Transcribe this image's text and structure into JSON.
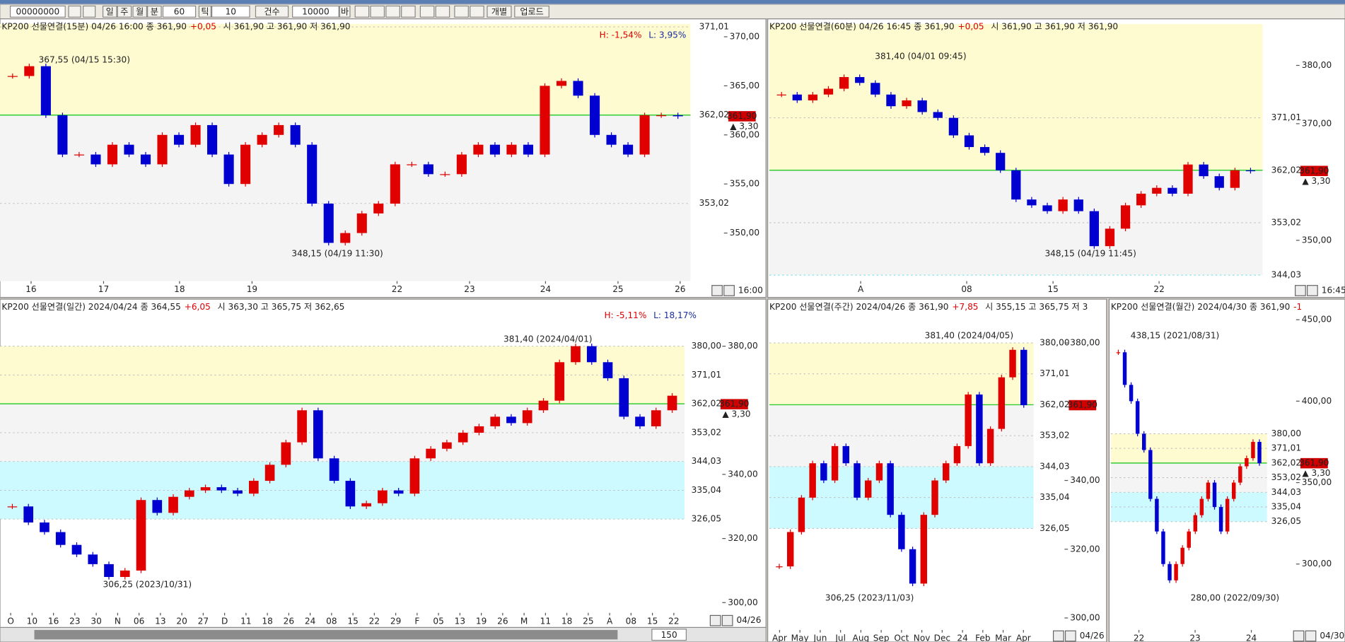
{
  "toolbar": {
    "account": "00000000",
    "periods": [
      "일",
      "주",
      "월",
      "분"
    ],
    "minute": "60",
    "tick_label": "틱",
    "tick": "10",
    "count_label": "건수",
    "count": "10000",
    "bar_label": "바",
    "buttons": [
      "개별",
      "업로드"
    ],
    "zoom": "150"
  },
  "panels": [
    {
      "title": "KP200 선물연결(15분) 04/26 16:00  종 361,90",
      "change": "+0,05",
      "ohlc": "시 361,90 고 361,90 저 361,90",
      "hl": [
        "H: -1,54%",
        "L: 3,95%"
      ],
      "ylim": [
        345.1,
        371.3
      ],
      "yticks": [
        {
          "value": 370,
          "label": "370,00"
        },
        {
          "value": 365,
          "label": "365,00"
        },
        {
          "value": 360,
          "label": "360,00"
        },
        {
          "value": 355,
          "label": "355,00"
        },
        {
          "value": 350,
          "label": "350,00"
        }
      ],
      "levels": [
        {
          "value": 371.01,
          "label": "371,01"
        },
        {
          "value": 362.02,
          "label": "362,02"
        },
        {
          "value": 353.02,
          "label": "353,02"
        }
      ],
      "fills": [
        "#fffbd0",
        "#fffbd0",
        "#f4f4f4",
        "#f4f4f4"
      ],
      "level_colors": [
        "#bbbbbb",
        "#33cc33",
        "#bbbbbb"
      ],
      "x_labels": [
        "16",
        "17",
        "18",
        "19",
        "22",
        "23",
        "24",
        "25",
        "26"
      ],
      "annotations": [
        {
          "text": "367,55 (04/15 15:30)",
          "color": "#c00000"
        },
        {
          "text": "348,15 (04/19 11:30)",
          "color": "#1a2ea0"
        }
      ],
      "last": {
        "value": 361.9,
        "label": "361,90"
      },
      "last_change": "▲ 3,30",
      "corner": "16:00",
      "closes": [
        366,
        367,
        362,
        358,
        358,
        357,
        359,
        358,
        357,
        360,
        359,
        361,
        358,
        355,
        359,
        360,
        361,
        359,
        353,
        349,
        350,
        352,
        353,
        357,
        357,
        356,
        356,
        358,
        359,
        358,
        359,
        358,
        365,
        365.5,
        364,
        360,
        359,
        358,
        362,
        362,
        361.9
      ]
    },
    {
      "title": "KP200 선물연결(60분) 04/26 16:45  종 361,90",
      "change": "+0,05",
      "ohlc": "시 361,90 고 361,90 저 361,90",
      "ylim": [
        343,
        387.1
      ],
      "yticks": [
        {
          "value": 380,
          "label": "380,00"
        },
        {
          "value": 370,
          "label": "370,00"
        },
        {
          "value": 350,
          "label": "350,00"
        }
      ],
      "levels": [
        {
          "value": 371.01,
          "label": "371,01"
        },
        {
          "value": 362.02,
          "label": "362,02"
        },
        {
          "value": 353.02,
          "label": "353,02"
        },
        {
          "value": 344.03,
          "label": "344,03"
        }
      ],
      "fills": [
        "#fffbd0",
        "#fffbd0",
        "#f4f4f4",
        "#f4f4f4",
        null
      ],
      "level_colors": [
        "#bbbbbb",
        "#33cc33",
        "#bbbbbb",
        "#66dddd"
      ],
      "x_labels": [
        "A",
        "08",
        "15",
        "22"
      ],
      "annotations": [
        {
          "text": "381,40 (04/01 09:45)",
          "color": "#c00000"
        },
        {
          "text": "348,15 (04/19 11:45)",
          "color": "#1a2ea0"
        }
      ],
      "last": {
        "value": 361.9,
        "label": "361,90"
      },
      "last_change": "▲ 3,30",
      "corner": "16:45",
      "closes": [
        375,
        374,
        375,
        376,
        378,
        377,
        375,
        373,
        374,
        372,
        371,
        368,
        366,
        365,
        362,
        357,
        356,
        355,
        357,
        355,
        349,
        352,
        356,
        358,
        359,
        358,
        363,
        361,
        359,
        362,
        361.9
      ]
    },
    {
      "title": "KP200 선물연결(일간) 2024/04/24  종 364,55",
      "change": "+6,05",
      "ohlc": "시 363,30 고 365,75 저 362,65",
      "hl": [
        "H: -5,11%",
        "L: 18,17%"
      ],
      "ylim": [
        296.8,
        391.2
      ],
      "yticks": [
        {
          "value": 380,
          "label": "380,00"
        },
        {
          "value": 340,
          "label": "340,00"
        },
        {
          "value": 320,
          "label": "320,00"
        },
        {
          "value": 300,
          "label": "300,00"
        }
      ],
      "levels": [
        {
          "value": 380,
          "label": "380,00"
        },
        {
          "value": 371.01,
          "label": "371,01"
        },
        {
          "value": 362.02,
          "label": "362,02"
        },
        {
          "value": 353.02,
          "label": "353,02"
        },
        {
          "value": 344.03,
          "label": "344,03"
        },
        {
          "value": 335.04,
          "label": "335,04"
        },
        {
          "value": 326.05,
          "label": "326,05"
        }
      ],
      "fills": [
        null,
        "#fffbd0",
        "#fffbd0",
        "#f4f4f4",
        "#f4f4f4",
        "#ccfaff",
        "#ccfaff",
        null
      ],
      "level_colors": [
        "#bbbbbb",
        "#bbbbbb",
        "#33cc33",
        "#bbbbbb",
        "#bbbbbb",
        "#bbbbbb",
        "#bbbbbb"
      ],
      "x_labels": [
        "O",
        "10",
        "16",
        "23",
        "30",
        "N",
        "06",
        "13",
        "20",
        "27",
        "D",
        "11",
        "18",
        "26",
        "24",
        "08",
        "15",
        "22",
        "29",
        "F",
        "05",
        "13",
        "19",
        "26",
        "M",
        "11",
        "18",
        "25",
        "A",
        "08",
        "15",
        "22"
      ],
      "annotations": [
        {
          "text": "381,40 (2024/04/01)",
          "color": "#c00000"
        },
        {
          "text": "306,25 (2023/10/31)",
          "color": "#1a2ea0"
        }
      ],
      "last": {
        "value": 361.9,
        "label": "361,90"
      },
      "last_change": "▲ 3,30",
      "corner": "04/26",
      "closes": [
        330,
        325,
        322,
        318,
        315,
        312,
        308,
        310,
        332,
        328,
        333,
        335,
        336,
        335,
        334,
        338,
        343,
        350,
        360,
        345,
        338,
        330,
        331,
        335,
        334,
        345,
        348,
        350,
        353,
        355,
        358,
        356,
        360,
        363,
        375,
        380,
        375,
        370,
        358,
        355,
        360,
        364.55
      ]
    },
    {
      "title": "KP200 선물연결(주간) 2024/04/26  종 361,90",
      "change": "+7,85",
      "ohlc": "시 355,15 고 365,75 저 3",
      "ylim": [
        296.5,
        389.5
      ],
      "yticks": [
        {
          "value": 380,
          "label": "380,00"
        },
        {
          "value": 340,
          "label": "340,00"
        },
        {
          "value": 320,
          "label": "320,00"
        },
        {
          "value": 300,
          "label": "300,00"
        }
      ],
      "levels": [
        {
          "value": 380,
          "label": "380,00"
        },
        {
          "value": 371.01,
          "label": "371,01"
        },
        {
          "value": 362.02,
          "label": "362,02"
        },
        {
          "value": 353.02,
          "label": "353,02"
        },
        {
          "value": 344.03,
          "label": "344,03"
        },
        {
          "value": 335.04,
          "label": "335,04"
        },
        {
          "value": 326.05,
          "label": "326,05"
        }
      ],
      "fills": [
        null,
        "#fffbd0",
        "#fffbd0",
        "#f4f4f4",
        "#f4f4f4",
        "#ccfaff",
        "#ccfaff",
        null
      ],
      "level_colors": [
        "#bbbbbb",
        "#bbbbbb",
        "#33cc33",
        "#bbbbbb",
        "#bbbbbb",
        "#bbbbbb",
        "#bbbbbb"
      ],
      "x_labels": [
        "Apr",
        "May",
        "Jun",
        "Jul",
        "Aug",
        "Sep",
        "Oct",
        "Nov",
        "Dec",
        "24",
        "Feb",
        "Mar",
        "Apr"
      ],
      "annotations": [
        {
          "text": "381,40 (2024/04/05)",
          "color": "#c00000"
        },
        {
          "text": "306,25 (2023/11/03)",
          "color": "#1a2ea0"
        }
      ],
      "last": {
        "value": 361.9,
        "label": "361,90"
      },
      "corner": "04/26",
      "closes": [
        315,
        325,
        335,
        345,
        340,
        350,
        345,
        335,
        340,
        345,
        330,
        320,
        310,
        330,
        340,
        345,
        350,
        365,
        345,
        355,
        370,
        378,
        361.9
      ]
    },
    {
      "title": "KP200 선물연결(월간) 2024/04/30  종 361,90",
      "change": "-1",
      "ylim": [
        259.5,
        455.8
      ],
      "yticks": [
        {
          "value": 450,
          "label": "450,00"
        },
        {
          "value": 400,
          "label": "400,00"
        },
        {
          "value": 350,
          "label": "350,00"
        },
        {
          "value": 300,
          "label": "300,00"
        }
      ],
      "levels": [
        {
          "value": 380,
          "label": "380,00"
        },
        {
          "value": 371.01,
          "label": "371,01"
        },
        {
          "value": 362.02,
          "label": "362,02"
        },
        {
          "value": 353.02,
          "label": "353,02"
        },
        {
          "value": 344.03,
          "label": "344,03"
        },
        {
          "value": 335.04,
          "label": "335,04"
        },
        {
          "value": 326.05,
          "label": "326,05"
        }
      ],
      "fills": [
        null,
        "#fffbd0",
        "#fffbd0",
        "#f4f4f4",
        "#f4f4f4",
        "#ccfaff",
        "#ccfaff",
        null
      ],
      "level_colors": [
        "#bbbbbb",
        "#bbbbbb",
        "#33cc33",
        "#bbbbbb",
        "#bbbbbb",
        "#bbbbbb",
        "#bbbbbb"
      ],
      "x_labels": [
        "22",
        "23",
        "24"
      ],
      "annotations": [
        {
          "text": "438,15 (2021/08/31)",
          "color": "#c00000"
        },
        {
          "text": "280,00 (2022/09/30)",
          "color": "#1a2ea0"
        }
      ],
      "last": {
        "value": 361.9,
        "label": "361,90"
      },
      "last_change": "▲ 3,30",
      "corner": "04/30",
      "closes": [
        430,
        410,
        400,
        380,
        370,
        340,
        320,
        300,
        290,
        300,
        310,
        320,
        330,
        340,
        350,
        335,
        320,
        340,
        350,
        360,
        365,
        375,
        361.9
      ]
    }
  ]
}
